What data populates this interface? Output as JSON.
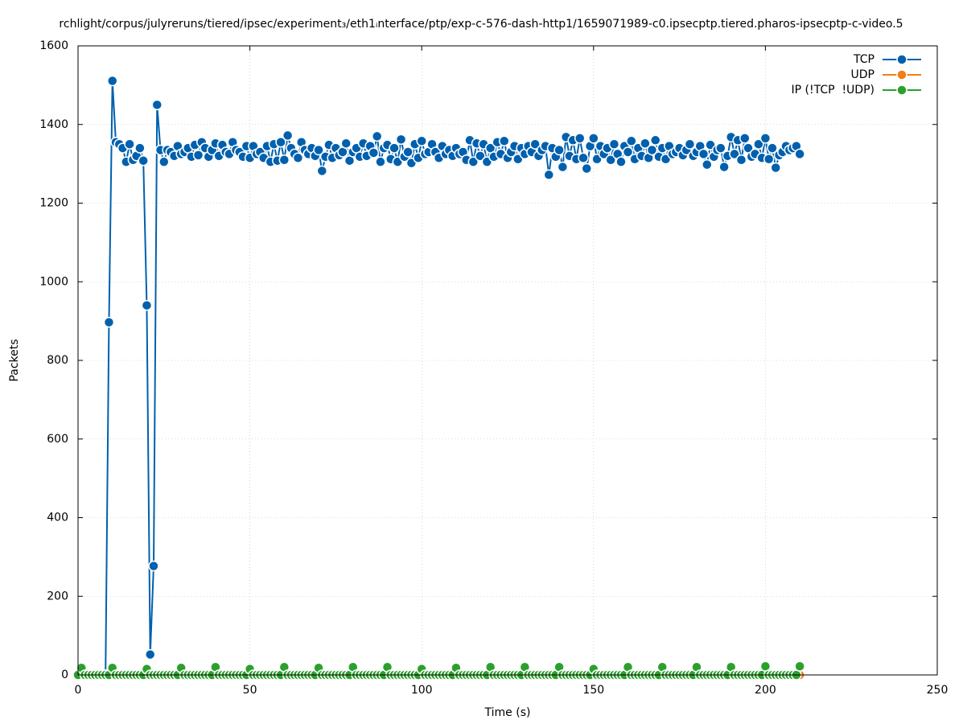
{
  "chart_data": {
    "type": "line",
    "title": "rchlight/corpus/julyreruns/tiered/ipsec/experiment₃/eth1ᵢnterface/ptp/exp-c-576-dash-http1/1659071989-c0.ipsecptp.tiered.pharos-ipsecptp-c-video.5",
    "x_label": "Time (s)",
    "y_label": "Packets",
    "xlim": [
      0,
      250
    ],
    "xticks": [
      0,
      50,
      100,
      150,
      200,
      250
    ],
    "ylim": [
      0,
      1600
    ],
    "yticks": [
      0,
      200,
      400,
      600,
      800,
      1000,
      1200,
      1400,
      1600
    ],
    "grid": true,
    "legend": "top-right",
    "x": [
      0,
      1,
      2,
      3,
      4,
      5,
      6,
      7,
      8,
      9,
      10,
      11,
      12,
      13,
      14,
      15,
      16,
      17,
      18,
      19,
      20,
      21,
      22,
      23,
      24,
      25,
      26,
      27,
      28,
      29,
      30,
      31,
      32,
      33,
      34,
      35,
      36,
      37,
      38,
      39,
      40,
      41,
      42,
      43,
      44,
      45,
      46,
      47,
      48,
      49,
      50,
      51,
      52,
      53,
      54,
      55,
      56,
      57,
      58,
      59,
      60,
      61,
      62,
      63,
      64,
      65,
      66,
      67,
      68,
      69,
      70,
      71,
      72,
      73,
      74,
      75,
      76,
      77,
      78,
      79,
      80,
      81,
      82,
      83,
      84,
      85,
      86,
      87,
      88,
      89,
      90,
      91,
      92,
      93,
      94,
      95,
      96,
      97,
      98,
      99,
      100,
      101,
      102,
      103,
      104,
      105,
      106,
      107,
      108,
      109,
      110,
      111,
      112,
      113,
      114,
      115,
      116,
      117,
      118,
      119,
      120,
      121,
      122,
      123,
      124,
      125,
      126,
      127,
      128,
      129,
      130,
      131,
      132,
      133,
      134,
      135,
      136,
      137,
      138,
      139,
      140,
      141,
      142,
      143,
      144,
      145,
      146,
      147,
      148,
      149,
      150,
      151,
      152,
      153,
      154,
      155,
      156,
      157,
      158,
      159,
      160,
      161,
      162,
      163,
      164,
      165,
      166,
      167,
      168,
      169,
      170,
      171,
      172,
      173,
      174,
      175,
      176,
      177,
      178,
      179,
      180,
      181,
      182,
      183,
      184,
      185,
      186,
      187,
      188,
      189,
      190,
      191,
      192,
      193,
      194,
      195,
      196,
      197,
      198,
      199,
      200,
      201,
      202,
      203,
      204,
      205,
      206,
      207,
      208,
      209,
      210
    ],
    "series": [
      {
        "name": "TCP",
        "color": "#0060ad",
        "values": [
          0,
          0,
          0,
          0,
          0,
          0,
          0,
          0,
          0,
          897,
          1511,
          1355,
          1350,
          1340,
          1305,
          1350,
          1310,
          1320,
          1340,
          1308,
          940,
          52,
          277,
          1450,
          1335,
          1305,
          1335,
          1330,
          1320,
          1345,
          1325,
          1330,
          1340,
          1318,
          1348,
          1322,
          1355,
          1340,
          1318,
          1335,
          1352,
          1320,
          1348,
          1330,
          1325,
          1355,
          1335,
          1330,
          1318,
          1345,
          1315,
          1345,
          1325,
          1330,
          1315,
          1345,
          1305,
          1350,
          1308,
          1355,
          1310,
          1372,
          1340,
          1325,
          1315,
          1355,
          1335,
          1325,
          1340,
          1320,
          1335,
          1282,
          1318,
          1348,
          1315,
          1340,
          1322,
          1330,
          1352,
          1308,
          1330,
          1340,
          1318,
          1352,
          1320,
          1345,
          1328,
          1370,
          1305,
          1340,
          1348,
          1312,
          1340,
          1305,
          1362,
          1318,
          1330,
          1302,
          1350,
          1315,
          1358,
          1325,
          1330,
          1350,
          1330,
          1315,
          1345,
          1325,
          1335,
          1320,
          1340,
          1325,
          1330,
          1310,
          1360,
          1305,
          1352,
          1320,
          1350,
          1305,
          1340,
          1318,
          1355,
          1325,
          1358,
          1315,
          1330,
          1345,
          1312,
          1340,
          1325,
          1345,
          1330,
          1350,
          1320,
          1335,
          1345,
          1272,
          1340,
          1318,
          1335,
          1292,
          1368,
          1320,
          1360,
          1312,
          1365,
          1315,
          1288,
          1345,
          1365,
          1312,
          1345,
          1325,
          1340,
          1310,
          1350,
          1325,
          1305,
          1345,
          1330,
          1358,
          1312,
          1340,
          1320,
          1352,
          1315,
          1335,
          1360,
          1318,
          1340,
          1312,
          1345,
          1325,
          1330,
          1340,
          1322,
          1335,
          1350,
          1320,
          1330,
          1345,
          1325,
          1298,
          1348,
          1318,
          1335,
          1340,
          1292,
          1320,
          1368,
          1325,
          1360,
          1310,
          1365,
          1340,
          1318,
          1325,
          1350,
          1315,
          1365,
          1312,
          1340,
          1290,
          1322,
          1330,
          1345,
          1335,
          1340,
          1345,
          1325
        ]
      },
      {
        "name": "UDP",
        "color": "#f07f14",
        "values": [
          0,
          0,
          0,
          0,
          0,
          0,
          0,
          0,
          0,
          0,
          0,
          0,
          0,
          0,
          0,
          0,
          0,
          0,
          0,
          0,
          0,
          0,
          0,
          0,
          0,
          0,
          0,
          0,
          0,
          0,
          0,
          0,
          0,
          0,
          0,
          0,
          0,
          0,
          0,
          0,
          0,
          0,
          0,
          0,
          0,
          0,
          0,
          0,
          0,
          0,
          0,
          0,
          0,
          0,
          0,
          0,
          0,
          0,
          0,
          0,
          0,
          0,
          0,
          0,
          0,
          0,
          0,
          0,
          0,
          0,
          0,
          0,
          0,
          0,
          0,
          0,
          0,
          0,
          0,
          0,
          0,
          0,
          0,
          0,
          0,
          0,
          0,
          0,
          0,
          0,
          0,
          0,
          0,
          0,
          0,
          0,
          0,
          0,
          0,
          0,
          0,
          0,
          0,
          0,
          0,
          0,
          0,
          0,
          0,
          0,
          0,
          0,
          0,
          0,
          0,
          0,
          0,
          0,
          0,
          0,
          0,
          0,
          0,
          0,
          0,
          0,
          0,
          0,
          0,
          0,
          0,
          0,
          0,
          0,
          0,
          0,
          0,
          0,
          0,
          0,
          0,
          0,
          0,
          0,
          0,
          0,
          0,
          0,
          0,
          0,
          0,
          0,
          0,
          0,
          0,
          0,
          0,
          0,
          0,
          0,
          0,
          0,
          0,
          0,
          0,
          0,
          0,
          0,
          0,
          0,
          0,
          0,
          0,
          0,
          0,
          0,
          0,
          0,
          0,
          0,
          0,
          0,
          0,
          0,
          0,
          0,
          0,
          0,
          0,
          0,
          0,
          0,
          0,
          0,
          0,
          0,
          0,
          0,
          0,
          0,
          0,
          0,
          0,
          0,
          0,
          0,
          0,
          0,
          0,
          0,
          0
        ]
      },
      {
        "name": "IP (!TCP  !UDP)",
        "color": "#2ca02c",
        "values": [
          0,
          18,
          0,
          0,
          0,
          0,
          0,
          0,
          0,
          0,
          18,
          0,
          0,
          0,
          0,
          0,
          0,
          0,
          0,
          0,
          15,
          0,
          0,
          0,
          0,
          0,
          0,
          0,
          0,
          0,
          18,
          0,
          0,
          0,
          0,
          0,
          0,
          0,
          0,
          0,
          20,
          0,
          0,
          0,
          0,
          0,
          0,
          0,
          0,
          0,
          15,
          0,
          0,
          0,
          0,
          0,
          0,
          0,
          0,
          0,
          20,
          0,
          0,
          0,
          0,
          0,
          0,
          0,
          0,
          0,
          18,
          0,
          0,
          0,
          0,
          0,
          0,
          0,
          0,
          0,
          20,
          0,
          0,
          0,
          0,
          0,
          0,
          0,
          0,
          0,
          20,
          0,
          0,
          0,
          0,
          0,
          0,
          0,
          0,
          0,
          15,
          0,
          0,
          0,
          0,
          0,
          0,
          0,
          0,
          0,
          18,
          0,
          0,
          0,
          0,
          0,
          0,
          0,
          0,
          0,
          20,
          0,
          0,
          0,
          0,
          0,
          0,
          0,
          0,
          0,
          20,
          0,
          0,
          0,
          0,
          0,
          0,
          0,
          0,
          0,
          20,
          0,
          0,
          0,
          0,
          0,
          0,
          0,
          0,
          0,
          15,
          0,
          0,
          0,
          0,
          0,
          0,
          0,
          0,
          0,
          20,
          0,
          0,
          0,
          0,
          0,
          0,
          0,
          0,
          0,
          20,
          0,
          0,
          0,
          0,
          0,
          0,
          0,
          0,
          0,
          20,
          0,
          0,
          0,
          0,
          0,
          0,
          0,
          0,
          0,
          20,
          0,
          0,
          0,
          0,
          0,
          0,
          0,
          0,
          0,
          22,
          0,
          0,
          0,
          0,
          0,
          0,
          0,
          0,
          0,
          22
        ]
      }
    ]
  }
}
